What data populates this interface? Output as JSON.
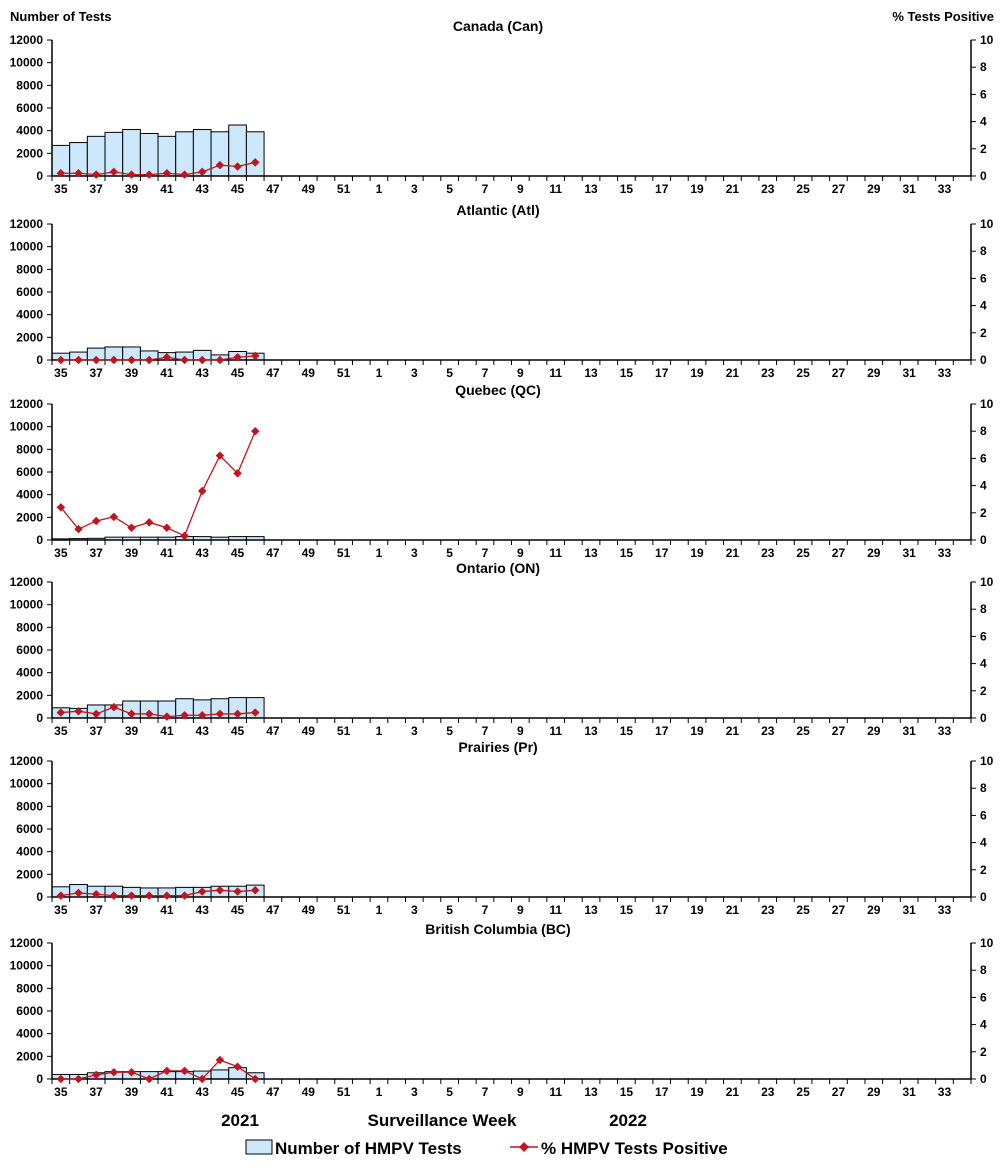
{
  "chart_data": {
    "type": "bar+line",
    "ylabel_left": "Number of Tests",
    "ylabel_right": "% Tests Positive",
    "xlabel": "Surveillance Week",
    "year_labels": [
      "2021",
      "2022"
    ],
    "weeks": [
      35,
      36,
      37,
      38,
      39,
      40,
      41,
      42,
      43,
      44,
      45,
      46,
      47,
      48,
      49,
      50,
      51,
      52,
      1,
      2,
      3,
      4,
      5,
      6,
      7,
      8,
      9,
      10,
      11,
      12,
      13,
      14,
      15,
      16,
      17,
      18,
      19,
      20,
      21,
      22,
      23,
      24,
      25,
      26,
      27,
      28,
      29,
      30,
      31,
      32,
      33,
      34
    ],
    "x_tick_labels": [
      "35",
      "37",
      "39",
      "41",
      "43",
      "45",
      "47",
      "49",
      "51",
      "1",
      "3",
      "5",
      "7",
      "9",
      "11",
      "13",
      "15",
      "17",
      "19",
      "21",
      "23",
      "25",
      "27",
      "29",
      "31",
      "33"
    ],
    "ylim_left": [
      0,
      12000
    ],
    "yticks_left": [
      0,
      2000,
      4000,
      6000,
      8000,
      10000,
      12000
    ],
    "ylim_right": [
      0,
      10
    ],
    "yticks_right": [
      0,
      2,
      4,
      6,
      8,
      10
    ],
    "legend": {
      "bars": "Number of HMPV Tests",
      "line": "% HMPV Tests Positive",
      "placement": "bottom"
    },
    "colors": {
      "bar_fill": "#cce8fa",
      "bar_stroke": "#000000",
      "line": "#c0141e"
    },
    "panels": [
      {
        "title": "Canada (Can)",
        "tests": [
          2700,
          2950,
          3500,
          3850,
          4100,
          3750,
          3500,
          3900,
          4100,
          3900,
          4500,
          3900
        ],
        "pct": [
          0.2,
          0.2,
          0.1,
          0.3,
          0.1,
          0.1,
          0.2,
          0.1,
          0.3,
          0.8,
          0.7,
          1.0
        ]
      },
      {
        "title": "Atlantic (Atl)",
        "tests": [
          600,
          700,
          1050,
          1150,
          1150,
          800,
          650,
          700,
          850,
          450,
          750,
          600
        ],
        "pct": [
          0,
          0,
          0,
          0,
          0,
          0,
          0.2,
          0,
          0,
          0,
          0.2,
          0.3
        ]
      },
      {
        "title": "Quebec (QC)",
        "tests": [
          100,
          120,
          150,
          250,
          250,
          250,
          250,
          300,
          300,
          250,
          300,
          300
        ],
        "pct": [
          2.4,
          0.8,
          1.4,
          1.7,
          0.9,
          1.3,
          0.9,
          0.3,
          3.6,
          6.2,
          4.9,
          8.0
        ]
      },
      {
        "title": "Ontario (ON)",
        "tests": [
          900,
          850,
          1150,
          1150,
          1500,
          1500,
          1500,
          1700,
          1600,
          1700,
          1800,
          1800
        ],
        "pct": [
          0.4,
          0.5,
          0.3,
          0.8,
          0.3,
          0.3,
          0.1,
          0.2,
          0.2,
          0.3,
          0.3,
          0.4
        ]
      },
      {
        "title": "Prairies (Pr)",
        "tests": [
          900,
          1100,
          950,
          950,
          850,
          800,
          800,
          850,
          850,
          950,
          950,
          1050
        ],
        "pct": [
          0.1,
          0.3,
          0.2,
          0.1,
          0.1,
          0.1,
          0.1,
          0.1,
          0.4,
          0.5,
          0.4,
          0.5
        ]
      },
      {
        "title": "British Columbia (BC)",
        "tests": [
          400,
          400,
          550,
          650,
          650,
          650,
          650,
          650,
          700,
          800,
          1000,
          550
        ],
        "pct": [
          0,
          0,
          0.3,
          0.5,
          0.5,
          0,
          0.6,
          0.6,
          0,
          1.4,
          0.9,
          0
        ]
      }
    ]
  }
}
